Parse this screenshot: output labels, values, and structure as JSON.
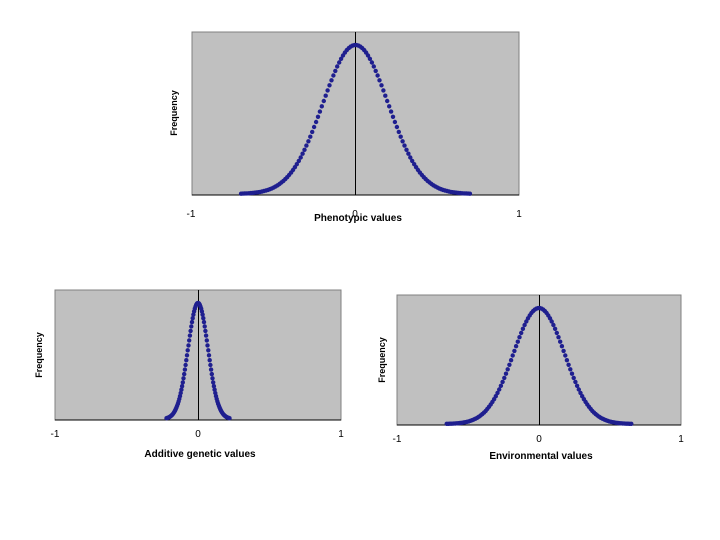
{
  "chart_data": [
    {
      "type": "scatter",
      "ylabel": "Frequency",
      "xlabel": "Phenotypic values",
      "xlim": [
        -1,
        1
      ],
      "xticks": [
        "-1",
        "0",
        "1"
      ],
      "grid": false,
      "legend": "none",
      "series": [
        {
          "color": "#1f1f8f",
          "distribution": {
            "kind": "normal",
            "mean": 0,
            "sd": 0.2,
            "x_range": [
              -0.7,
              0.7
            ],
            "n_points": 120
          }
        }
      ]
    },
    {
      "type": "scatter",
      "ylabel": "Frequency",
      "xlabel": "Additive genetic values",
      "xlim": [
        -1,
        1
      ],
      "xticks": [
        "-1",
        "0",
        "1"
      ],
      "grid": false,
      "legend": "none",
      "series": [
        {
          "color": "#1f1f8f",
          "distribution": {
            "kind": "normal",
            "mean": 0,
            "sd": 0.07,
            "x_range": [
              -0.22,
              0.22
            ],
            "n_points": 90
          }
        }
      ]
    },
    {
      "type": "scatter",
      "ylabel": "Frequency",
      "xlabel": "Environmental values",
      "xlim": [
        -1,
        1
      ],
      "xticks": [
        "-1",
        "0",
        "1"
      ],
      "grid": false,
      "legend": "none",
      "series": [
        {
          "color": "#1f1f8f",
          "distribution": {
            "kind": "normal",
            "mean": 0,
            "sd": 0.18,
            "x_range": [
              -0.65,
              0.65
            ],
            "n_points": 110
          }
        }
      ]
    }
  ]
}
